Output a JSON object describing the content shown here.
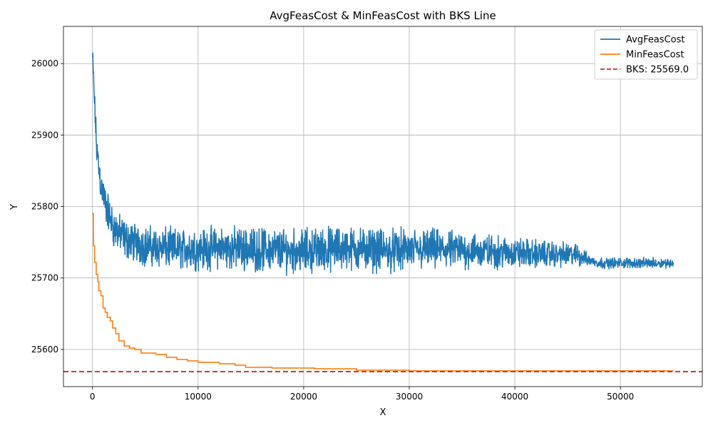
{
  "chart_data": {
    "type": "line",
    "title": "AvgFeasCost & MinFeasCost with BKS Line",
    "xlabel": "X",
    "ylabel": "Y",
    "xlim": [
      -2750,
      57750
    ],
    "ylim": [
      25548,
      26052
    ],
    "xticks": [
      0,
      10000,
      20000,
      30000,
      40000,
      50000
    ],
    "yticks": [
      25600,
      25700,
      25800,
      25900,
      26000
    ],
    "grid": true,
    "legend_position": "top-right",
    "series": [
      {
        "name": "AvgFeasCost",
        "color": "#1f77b4",
        "style": "noisy-band",
        "center": [
          [
            0,
            26010
          ],
          [
            150,
            25960
          ],
          [
            400,
            25880
          ],
          [
            800,
            25830
          ],
          [
            1300,
            25800
          ],
          [
            2000,
            25770
          ],
          [
            3000,
            25755
          ],
          [
            5000,
            25745
          ],
          [
            8000,
            25740
          ],
          [
            12000,
            25742
          ],
          [
            16000,
            25740
          ],
          [
            20000,
            25738
          ],
          [
            24000,
            25742
          ],
          [
            28000,
            25738
          ],
          [
            32000,
            25740
          ],
          [
            36000,
            25738
          ],
          [
            40000,
            25735
          ],
          [
            44000,
            25733
          ],
          [
            46000,
            25732
          ],
          [
            47000,
            25725
          ],
          [
            48000,
            25721
          ],
          [
            55000,
            25721
          ]
        ],
        "amplitude": [
          [
            0,
            18
          ],
          [
            500,
            26
          ],
          [
            2000,
            28
          ],
          [
            10000,
            30
          ],
          [
            22000,
            32
          ],
          [
            30000,
            30
          ],
          [
            36000,
            26
          ],
          [
            42000,
            20
          ],
          [
            46000,
            16
          ],
          [
            47000,
            8
          ],
          [
            55000,
            7
          ]
        ],
        "max": 26030,
        "min": 25694
      },
      {
        "name": "MinFeasCost",
        "color": "#ff7f0e",
        "style": "step",
        "points": [
          [
            0,
            25790
          ],
          [
            100,
            25745
          ],
          [
            200,
            25722
          ],
          [
            350,
            25705
          ],
          [
            500,
            25695
          ],
          [
            600,
            25682
          ],
          [
            800,
            25675
          ],
          [
            1000,
            25658
          ],
          [
            1200,
            25652
          ],
          [
            1400,
            25645
          ],
          [
            1700,
            25640
          ],
          [
            1900,
            25630
          ],
          [
            2200,
            25622
          ],
          [
            2500,
            25612
          ],
          [
            3000,
            25605
          ],
          [
            3500,
            25602
          ],
          [
            4000,
            25600
          ],
          [
            4600,
            25595
          ],
          [
            6000,
            25593
          ],
          [
            7000,
            25589
          ],
          [
            8000,
            25586
          ],
          [
            9000,
            25584
          ],
          [
            10000,
            25582
          ],
          [
            12000,
            25580
          ],
          [
            13500,
            25578
          ],
          [
            14500,
            25575
          ],
          [
            17000,
            25574
          ],
          [
            21000,
            25573
          ],
          [
            25000,
            25571
          ],
          [
            30000,
            25570
          ],
          [
            40000,
            25570
          ],
          [
            55000,
            25569.5
          ]
        ]
      },
      {
        "name": "BKS: 25569.0",
        "color": "#d62728",
        "style": "dashed-horizontal",
        "value": 25569.0
      }
    ]
  }
}
